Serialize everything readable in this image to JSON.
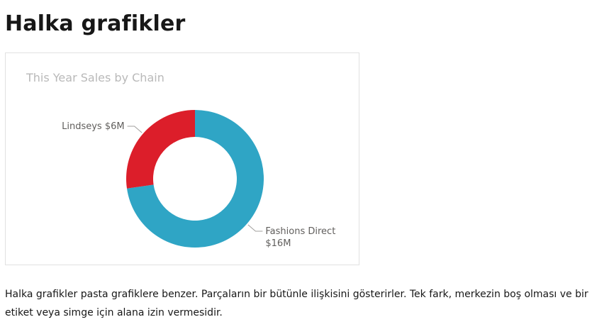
{
  "page": {
    "heading": "Halka grafikler",
    "description": "Halka grafikler pasta grafiklere benzer. Parçaların bir bütünle ilişkisini gösterirler. Tek fark, merkezin boş olması ve bir etiket veya simge için alana izin vermesidir."
  },
  "chart_data": {
    "type": "pie",
    "variant": "donut",
    "title": "This Year Sales by Chain",
    "slices": [
      {
        "name": "Fashions Direct",
        "value": 16,
        "value_label": "$16M",
        "color": "#2fa5c5"
      },
      {
        "name": "Lindseys",
        "value": 6,
        "value_label": "$6M",
        "color": "#dc1e2a"
      }
    ],
    "unit": "$M",
    "legend": "none",
    "data_labels": "outside"
  }
}
